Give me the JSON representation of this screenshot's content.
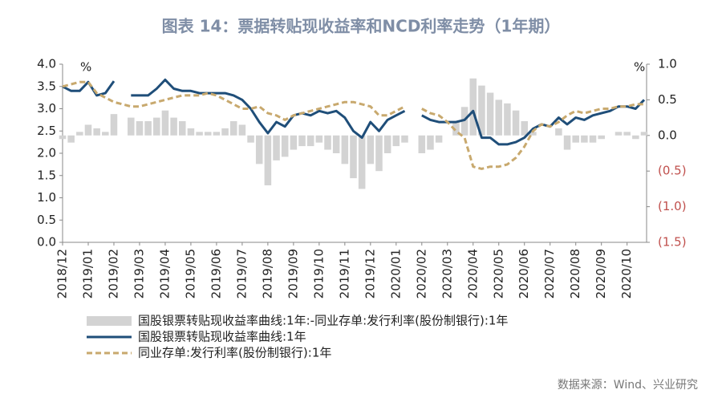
{
  "chart_data": {
    "type": "bar-line",
    "title": "图表 14：票据转贴现收益率和NCD利率走势（1年期）",
    "ylabel": "%",
    "y2label": "%",
    "source": "数据来源：Wind、兴业研究",
    "categories": [
      "2018/12",
      null,
      null,
      "2019/01",
      null,
      null,
      "2019/02",
      null,
      null,
      "2019/03",
      null,
      null,
      "2019/04",
      null,
      null,
      "2019/05",
      null,
      null,
      "2019/06",
      null,
      null,
      "2019/07",
      null,
      null,
      "2019/08",
      null,
      null,
      "2019/09",
      null,
      null,
      "2019/10",
      null,
      null,
      "2019/11",
      null,
      null,
      "2019/12",
      null,
      null,
      "2020/01",
      null,
      null,
      "2020/02",
      null,
      null,
      "2020/03",
      null,
      null,
      "2020/04",
      null,
      null,
      "2020/05",
      null,
      null,
      "2020/06",
      null,
      null,
      "2020/07",
      null,
      null,
      "2020/08",
      null,
      null,
      "2020/09",
      null,
      null,
      "2020/10",
      null,
      null
    ],
    "ylim": [
      0,
      4
    ],
    "yticks": [
      {
        "value": 0,
        "label": "0.0"
      },
      0.5,
      {
        "value": 1,
        "label": "1.0"
      },
      1.5,
      {
        "value": 2,
        "label": "2.0"
      },
      2.5,
      {
        "value": 3,
        "label": "3.0"
      },
      3.5,
      {
        "value": 4,
        "label": "4.0"
      }
    ],
    "y2lim": [
      -1.5,
      1
    ],
    "y2ticks": [
      {
        "value": -1.5,
        "label": "(1.5)"
      },
      {
        "value": -1,
        "label": "(1.0)"
      },
      {
        "value": -0.5,
        "label": "(0.5)"
      },
      {
        "value": 0,
        "label": "0.0"
      },
      0.5,
      {
        "value": 1,
        "label": "1.0"
      }
    ],
    "y2_negative_label_color": "#c0504d",
    "legend": "bottom",
    "series": [
      {
        "name": "国股银票转贴现收益率曲线:1年:-同业存单:发行利率(股份制银行):1年",
        "kind": "bar",
        "axis": "y2",
        "color": "#d3d3d3",
        "values": [
          -0.05,
          -0.1,
          0.05,
          0.15,
          0.1,
          0.05,
          0.3,
          null,
          0.25,
          0.2,
          0.2,
          0.25,
          0.35,
          0.25,
          0.2,
          0.1,
          0.05,
          0.05,
          0.05,
          0.1,
          0.2,
          0.15,
          -0.1,
          -0.4,
          -0.7,
          -0.35,
          -0.3,
          -0.2,
          -0.15,
          -0.15,
          -0.1,
          -0.2,
          -0.25,
          -0.4,
          -0.6,
          -0.75,
          -0.4,
          -0.5,
          -0.25,
          -0.15,
          -0.1,
          null,
          -0.25,
          -0.2,
          -0.1,
          0,
          0.2,
          0.4,
          0.8,
          0.7,
          0.6,
          0.5,
          0.45,
          0.35,
          0.2,
          0.05,
          0,
          0,
          0.1,
          -0.2,
          -0.1,
          -0.1,
          -0.1,
          -0.05,
          0,
          0.05,
          0.05,
          -0.05,
          0.05
        ]
      },
      {
        "name": "国股银票转贴现收益率曲线:1年",
        "kind": "line",
        "color": "#1f4e79",
        "values": [
          3.5,
          3.4,
          3.4,
          3.6,
          3.3,
          3.35,
          3.62,
          null,
          3.3,
          3.3,
          3.3,
          3.45,
          3.65,
          3.45,
          3.4,
          3.4,
          3.35,
          3.35,
          3.35,
          3.35,
          3.3,
          3.2,
          3.0,
          2.7,
          2.45,
          2.7,
          2.6,
          2.85,
          2.9,
          2.85,
          2.95,
          2.9,
          2.95,
          2.8,
          2.5,
          2.35,
          2.7,
          2.5,
          2.75,
          2.85,
          2.95,
          null,
          2.85,
          2.75,
          2.7,
          2.7,
          2.7,
          2.75,
          2.95,
          2.35,
          2.35,
          2.2,
          2.2,
          2.25,
          2.35,
          2.55,
          2.65,
          2.6,
          2.8,
          2.65,
          2.8,
          2.75,
          2.85,
          2.9,
          2.95,
          3.05,
          3.05,
          3.0,
          3.2
        ]
      },
      {
        "name": "同业存单:发行利率(股份制银行):1年",
        "kind": "dashed",
        "color": "#c8a96e",
        "values": [
          3.5,
          3.55,
          3.6,
          3.6,
          3.35,
          3.25,
          3.15,
          3.1,
          3.05,
          3.05,
          3.1,
          3.15,
          3.2,
          3.25,
          3.3,
          3.3,
          3.3,
          3.35,
          3.3,
          3.2,
          3.1,
          3.0,
          3.0,
          3.05,
          2.9,
          2.85,
          2.75,
          2.85,
          2.9,
          2.95,
          3.0,
          3.05,
          3.1,
          3.15,
          3.15,
          3.1,
          3.05,
          2.85,
          2.85,
          2.95,
          3.05,
          null,
          3.0,
          2.9,
          2.85,
          2.7,
          2.5,
          2.35,
          1.7,
          1.65,
          1.7,
          1.7,
          1.75,
          1.9,
          2.15,
          2.5,
          2.65,
          2.6,
          2.7,
          2.85,
          2.95,
          2.9,
          2.95,
          3.0,
          3.0,
          3.05,
          3.05,
          3.1,
          3.1
        ]
      }
    ]
  }
}
